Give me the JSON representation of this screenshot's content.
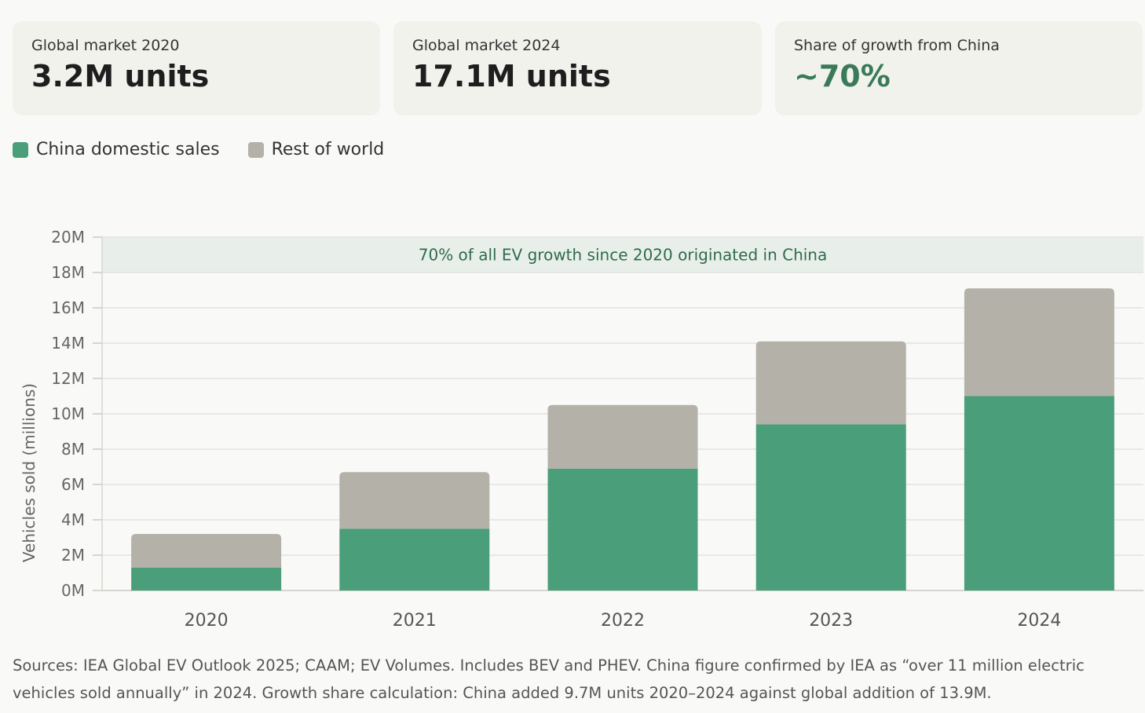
{
  "cards": [
    {
      "label": "Global market 2020",
      "value": "3.2M units"
    },
    {
      "label": "Global market 2024",
      "value": "17.1M units"
    },
    {
      "label": "Share of growth from China",
      "value": "~70%"
    }
  ],
  "colors": {
    "china": "#4a9e7a",
    "rest": "#b3b1a8",
    "accent": "#3a7a58",
    "annotation_bg": "#e8efea",
    "annotation_text": "#2f6b4c"
  },
  "legend": {
    "china": "China domestic sales",
    "rest": "Rest of world"
  },
  "chart_data": {
    "type": "bar",
    "stacked": true,
    "categories": [
      "2020",
      "2021",
      "2022",
      "2023",
      "2024"
    ],
    "series": [
      {
        "name": "China domestic sales",
        "values": [
          1.3,
          3.5,
          6.9,
          9.4,
          11.0
        ]
      },
      {
        "name": "Rest of world",
        "values": [
          1.9,
          3.2,
          3.6,
          4.7,
          6.1
        ]
      }
    ],
    "ylabel": "Vehicles sold (millions)",
    "ylim": [
      0,
      20
    ],
    "yticks": [
      "0M",
      "2M",
      "4M",
      "6M",
      "8M",
      "10M",
      "12M",
      "14M",
      "16M",
      "18M",
      "20M"
    ],
    "grid": true,
    "annotation": {
      "text": "70% of all EV growth since 2020 originated in China",
      "y_from": 18,
      "y_to": 20
    }
  },
  "sources": "Sources: IEA Global EV Outlook 2025; CAAM; EV Volumes. Includes BEV and PHEV. China figure confirmed by IEA as “over 11 million electric vehicles sold annually” in 2024. Growth share calculation: China added 9.7M units 2020–2024 against global addition of 13.9M."
}
